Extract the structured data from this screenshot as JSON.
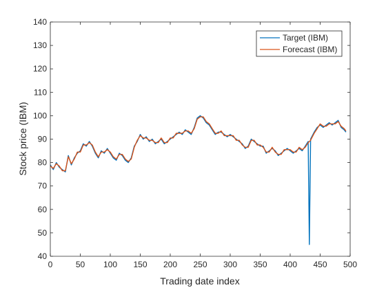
{
  "chart_data": {
    "type": "line",
    "title": "",
    "xlabel": "Trading date index",
    "ylabel": "Stock price (IBM)",
    "xlim": [
      0,
      500
    ],
    "ylim": [
      40,
      140
    ],
    "xticks": [
      0,
      50,
      100,
      150,
      200,
      250,
      300,
      350,
      400,
      450,
      500
    ],
    "yticks": [
      40,
      50,
      60,
      70,
      80,
      90,
      100,
      110,
      120,
      130,
      140
    ],
    "grid": false,
    "legend_position": "top-right",
    "series": [
      {
        "name": "Target (IBM)",
        "color": "#0072BD",
        "x": [
          0,
          5,
          10,
          15,
          20,
          25,
          30,
          35,
          40,
          45,
          50,
          55,
          60,
          65,
          70,
          75,
          80,
          85,
          90,
          95,
          100,
          105,
          110,
          115,
          120,
          125,
          130,
          135,
          140,
          145,
          150,
          155,
          160,
          165,
          170,
          175,
          180,
          185,
          190,
          195,
          200,
          205,
          210,
          215,
          220,
          225,
          230,
          235,
          240,
          245,
          250,
          255,
          260,
          265,
          270,
          275,
          280,
          285,
          290,
          295,
          300,
          305,
          310,
          315,
          320,
          325,
          330,
          335,
          340,
          345,
          350,
          355,
          360,
          365,
          370,
          375,
          380,
          385,
          390,
          395,
          400,
          405,
          410,
          415,
          420,
          425,
          430,
          432,
          434,
          436,
          440,
          445,
          450,
          455,
          460,
          465,
          470,
          475,
          480,
          485,
          490,
          493
        ],
        "y": [
          79,
          77,
          80,
          78,
          77,
          76,
          83,
          79,
          82,
          84,
          85,
          88,
          87,
          89,
          87,
          84,
          82,
          85,
          84,
          86,
          84,
          82,
          81,
          84,
          83,
          81,
          80,
          82,
          87,
          89,
          92,
          90,
          91,
          89,
          90,
          88,
          89,
          90,
          88,
          89,
          90,
          91,
          92,
          93,
          92,
          94,
          93,
          92,
          95,
          99,
          100,
          99,
          97,
          96,
          94,
          92,
          93,
          93,
          92,
          91,
          92,
          91,
          90,
          89,
          88,
          86,
          87,
          90,
          89,
          88,
          87,
          87,
          84,
          85,
          86,
          85,
          83,
          84,
          85,
          86,
          85,
          84,
          85,
          86,
          85,
          87,
          89,
          45,
          90,
          91,
          93,
          95,
          96,
          95,
          96,
          97,
          96,
          97,
          98,
          95,
          94,
          93
        ]
      },
      {
        "name": "Forecast (IBM)",
        "color": "#D95319",
        "x": [
          0,
          5,
          10,
          15,
          20,
          25,
          30,
          35,
          40,
          45,
          50,
          55,
          60,
          65,
          70,
          75,
          80,
          85,
          90,
          95,
          100,
          105,
          110,
          115,
          120,
          125,
          130,
          135,
          140,
          145,
          150,
          155,
          160,
          165,
          170,
          175,
          180,
          185,
          190,
          195,
          200,
          205,
          210,
          215,
          220,
          225,
          230,
          235,
          240,
          245,
          250,
          255,
          260,
          265,
          270,
          275,
          280,
          285,
          290,
          295,
          300,
          305,
          310,
          315,
          320,
          325,
          330,
          335,
          340,
          345,
          350,
          355,
          360,
          365,
          370,
          375,
          380,
          385,
          390,
          395,
          400,
          405,
          410,
          415,
          420,
          425,
          430,
          434,
          436,
          440,
          445,
          450,
          455,
          460,
          465,
          470,
          475,
          480,
          485,
          490,
          493
        ],
        "y": [
          78.5,
          77.5,
          79.5,
          78.5,
          76.5,
          76.5,
          82.5,
          79.5,
          81.5,
          84.5,
          84.5,
          87.5,
          87.5,
          88.5,
          87.5,
          84.5,
          82.5,
          84.5,
          84.5,
          85.5,
          84.5,
          82.5,
          81.5,
          83.5,
          83.5,
          81.5,
          80.5,
          81.5,
          86.5,
          89.5,
          91.5,
          90.5,
          90.5,
          89.5,
          89.5,
          88.5,
          88.5,
          90.5,
          88.5,
          88.5,
          90.5,
          90.5,
          92.5,
          92.5,
          92.5,
          93.5,
          93.5,
          92.5,
          94.5,
          98.5,
          99.5,
          99.5,
          97.5,
          96.5,
          94.5,
          92.5,
          92.5,
          93.5,
          91.5,
          91.5,
          91.5,
          91.5,
          89.5,
          89.5,
          87.5,
          86.5,
          86.5,
          89.5,
          89.5,
          87.5,
          87.5,
          86.5,
          84.5,
          84.5,
          86.5,
          84.5,
          83.5,
          83.5,
          85.5,
          85.5,
          85.5,
          84.5,
          84.5,
          86.5,
          85.5,
          86.5,
          88.5,
          89.5,
          90.5,
          92.5,
          94.5,
          96.5,
          95.5,
          95.5,
          96.5,
          96.5,
          96.5,
          97.5,
          95.5,
          94.5,
          93.5
        ]
      }
    ]
  }
}
